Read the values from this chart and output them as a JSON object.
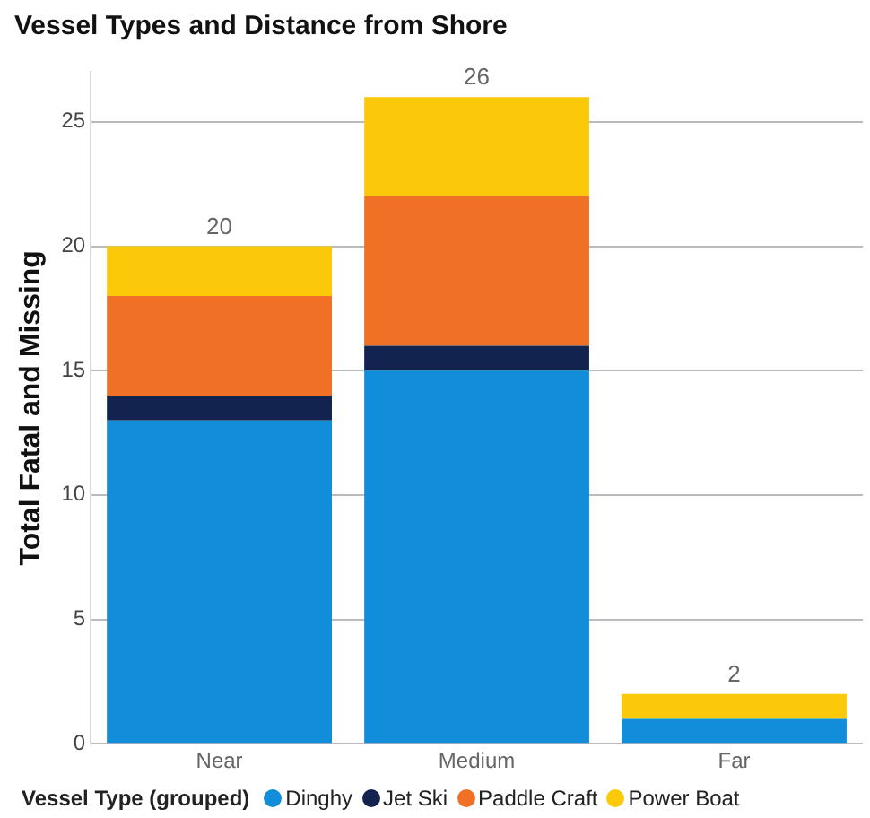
{
  "chart_data": {
    "type": "bar",
    "title": "Vessel Types and Distance from Shore",
    "ylabel": "Total Fatal and Missing",
    "legend_title": "Vessel Type (grouped)",
    "categories": [
      "Near",
      "Medium",
      "Far"
    ],
    "stacked": true,
    "series": [
      {
        "name": "Dinghy",
        "color": "#118dda",
        "values": [
          13,
          15,
          1
        ]
      },
      {
        "name": "Jet Ski",
        "color": "#12234f",
        "values": [
          1,
          1,
          0
        ]
      },
      {
        "name": "Paddle Craft",
        "color": "#f07125",
        "values": [
          4,
          6,
          0
        ]
      },
      {
        "name": "Power Boat",
        "color": "#fcc90a",
        "values": [
          2,
          4,
          1
        ]
      }
    ],
    "totals": [
      "20",
      "26",
      "2"
    ],
    "ylim": [
      0,
      27
    ],
    "yticks": [
      0,
      5,
      10,
      15,
      20,
      25
    ],
    "grid": "y",
    "legend": "bottom"
  }
}
